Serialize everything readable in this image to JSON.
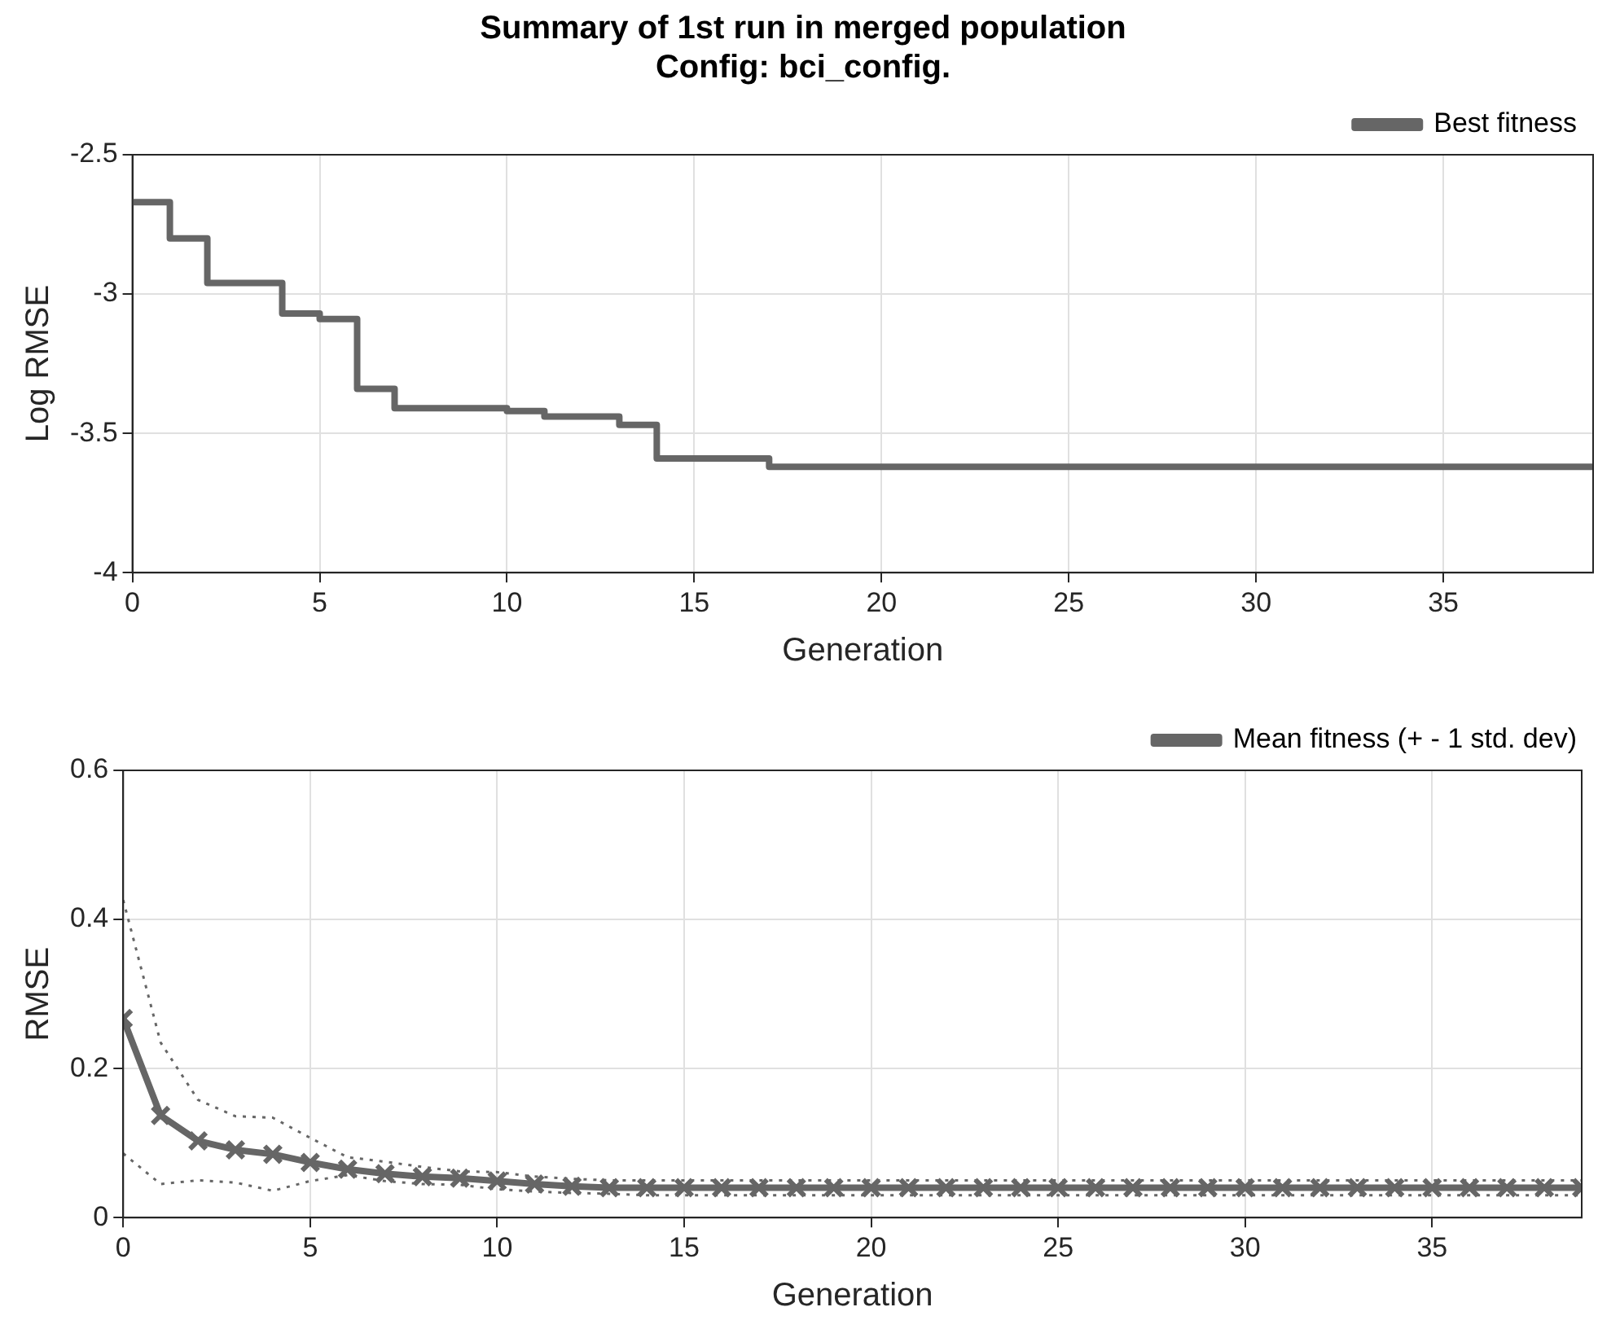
{
  "chart_data": [
    {
      "type": "step",
      "title": "Summary of 1st run in merged population\nConfig: bci_config.",
      "xlabel": "Generation",
      "ylabel": "Log RMSE",
      "x": [
        0,
        1,
        2,
        3,
        4,
        5,
        6,
        7,
        8,
        9,
        10,
        11,
        12,
        13,
        14,
        15,
        16,
        17,
        18,
        19,
        20,
        21,
        22,
        23,
        24,
        25,
        26,
        27,
        28,
        29,
        30,
        31,
        32,
        33,
        34,
        35,
        36,
        37,
        38,
        39
      ],
      "series": [
        {
          "name": "Best fitness",
          "color": "#666666",
          "values": [
            -2.67,
            -2.8,
            -2.96,
            -2.96,
            -3.07,
            -3.09,
            -3.34,
            -3.41,
            -3.41,
            -3.41,
            -3.42,
            -3.44,
            -3.44,
            -3.47,
            -3.59,
            -3.59,
            -3.59,
            -3.62,
            -3.62,
            -3.62,
            -3.62,
            -3.62,
            -3.62,
            -3.62,
            -3.62,
            -3.62,
            -3.62,
            -3.62,
            -3.62,
            -3.62,
            -3.62,
            -3.62,
            -3.62,
            -3.62,
            -3.62,
            -3.62,
            -3.62,
            -3.62,
            -3.62,
            -3.62
          ]
        }
      ],
      "xlim": [
        0,
        39
      ],
      "xticks": [
        0,
        5,
        10,
        15,
        20,
        25,
        30,
        35
      ],
      "ylim": [
        -4,
        -2.5
      ],
      "yticks": [
        -4,
        -3.5,
        -3,
        -2.5
      ],
      "grid": true,
      "legend": "top right"
    },
    {
      "type": "line",
      "xlabel": "Generation",
      "ylabel": "RMSE",
      "x": [
        0,
        1,
        2,
        3,
        4,
        5,
        6,
        7,
        8,
        9,
        10,
        11,
        12,
        13,
        14,
        15,
        16,
        17,
        18,
        19,
        20,
        21,
        22,
        23,
        24,
        25,
        26,
        27,
        28,
        29,
        30,
        31,
        32,
        33,
        34,
        35,
        36,
        37,
        38,
        39
      ],
      "series": [
        {
          "name": "Mean fitness (+ - 1 std. dev)",
          "color": "#666666",
          "values": [
            0.267,
            0.137,
            0.103,
            0.091,
            0.085,
            0.074,
            0.065,
            0.059,
            0.055,
            0.053,
            0.049,
            0.045,
            0.042,
            0.04,
            0.04,
            0.04,
            0.04,
            0.04,
            0.04,
            0.04,
            0.04,
            0.04,
            0.04,
            0.04,
            0.04,
            0.04,
            0.04,
            0.04,
            0.04,
            0.04,
            0.04,
            0.04,
            0.04,
            0.04,
            0.04,
            0.04,
            0.04,
            0.04,
            0.04,
            0.04
          ],
          "marker": "cross"
        },
        {
          "color": "#666666",
          "marker": "none",
          "line_style": "dotted",
          "values": [
            0.086,
            0.045,
            0.05,
            0.047,
            0.036,
            0.049,
            0.057,
            0.049,
            0.045,
            0.044,
            0.038,
            0.035,
            0.033,
            0.032,
            0.03,
            0.03,
            0.03,
            0.03,
            0.03,
            0.03,
            0.03,
            0.03,
            0.03,
            0.03,
            0.03,
            0.03,
            0.03,
            0.03,
            0.03,
            0.03,
            0.03,
            0.03,
            0.03,
            0.03,
            0.03,
            0.03,
            0.03,
            0.03,
            0.03,
            0.03
          ]
        },
        {
          "color": "#666666",
          "marker": "none",
          "line_style": "dotted",
          "values": [
            0.426,
            0.235,
            0.158,
            0.136,
            0.134,
            0.107,
            0.081,
            0.075,
            0.068,
            0.062,
            0.061,
            0.055,
            0.052,
            0.05,
            0.05,
            0.05,
            0.05,
            0.05,
            0.05,
            0.05,
            0.05,
            0.05,
            0.05,
            0.05,
            0.05,
            0.05,
            0.05,
            0.05,
            0.05,
            0.05,
            0.05,
            0.05,
            0.05,
            0.05,
            0.05,
            0.05,
            0.05,
            0.05,
            0.05,
            0.05
          ]
        }
      ],
      "xlim": [
        0,
        39
      ],
      "xticks": [
        0,
        5,
        10,
        15,
        20,
        25,
        30,
        35
      ],
      "ylim": [
        0,
        0.6
      ],
      "yticks": [
        0,
        0.2,
        0.4,
        0.6
      ],
      "grid": true,
      "legend": "top right"
    }
  ]
}
